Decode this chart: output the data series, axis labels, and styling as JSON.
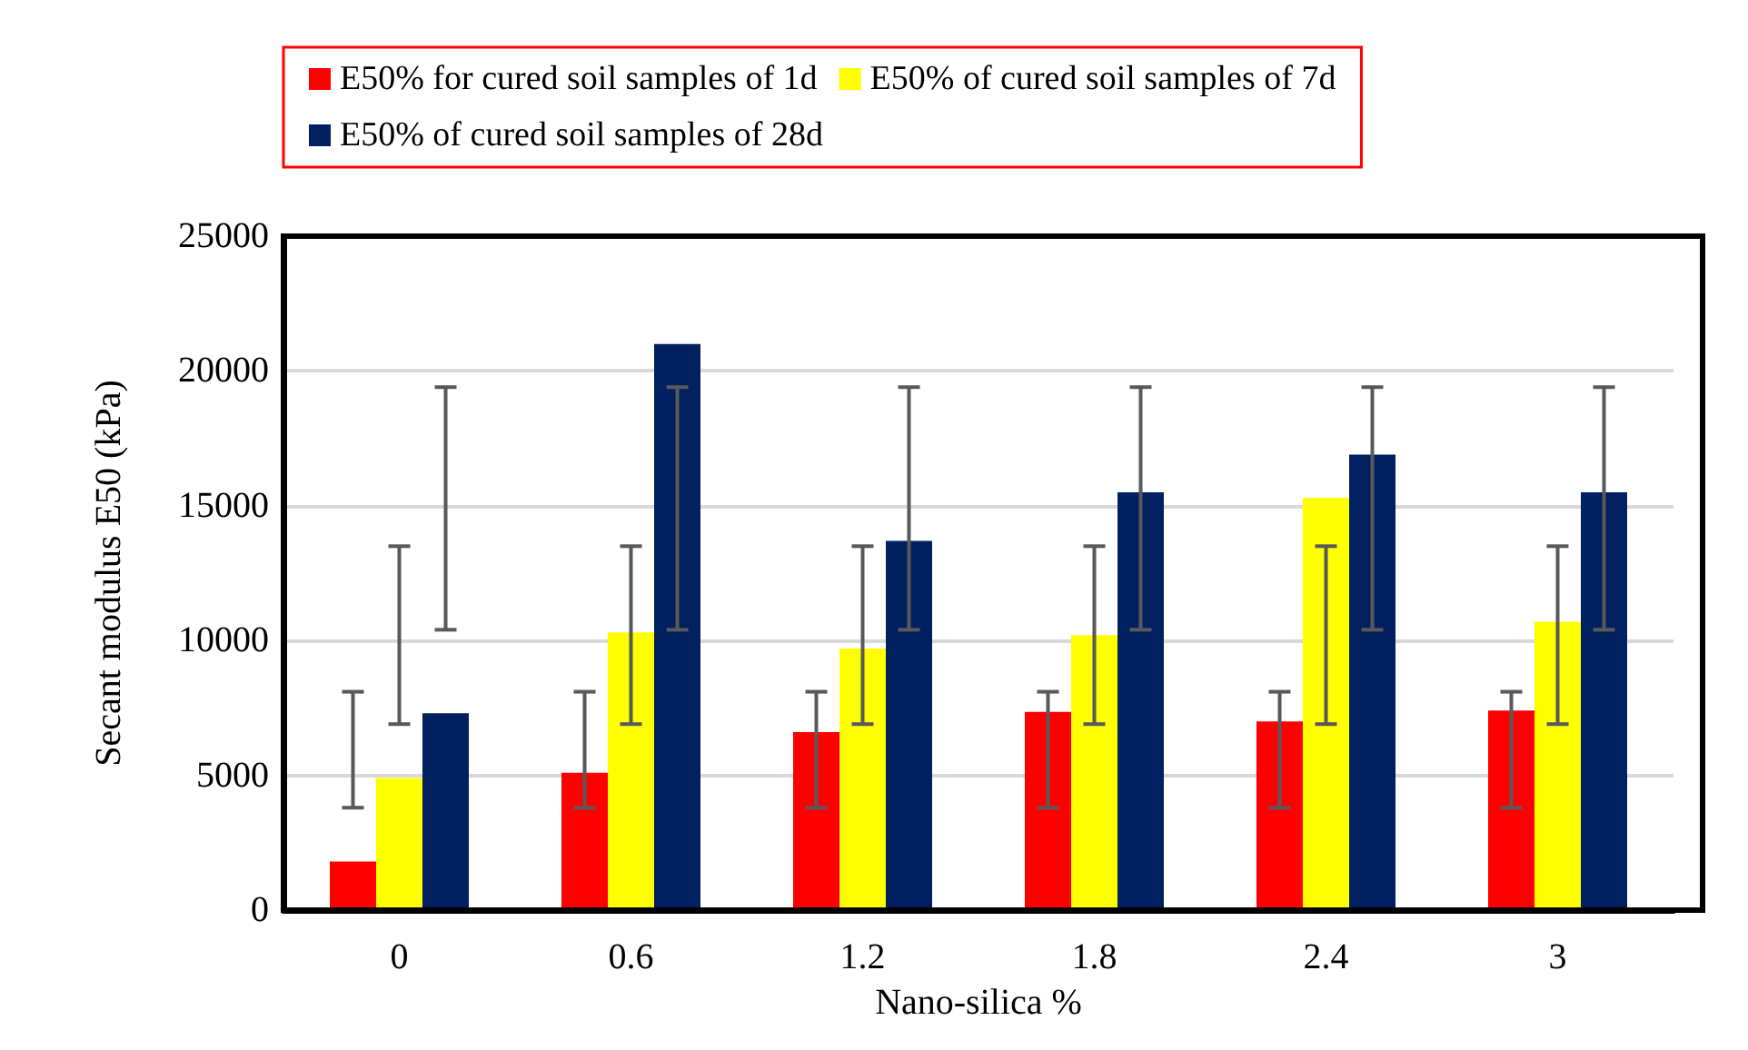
{
  "chart_data": {
    "type": "bar",
    "xlabel": "Nano-silica %",
    "ylabel": "Secant modulus E50 (kPa)",
    "categories": [
      "0",
      "0.6",
      "1.2",
      "1.8",
      "2.4",
      "3"
    ],
    "series": [
      {
        "name": "E50% for cured soil samples of 1d",
        "color": "#ff0000",
        "values": [
          1800,
          5100,
          6600,
          7350,
          7000,
          7400
        ],
        "errors": [
          [
            3800,
            8100
          ],
          [
            3800,
            8100
          ],
          [
            3800,
            8100
          ],
          [
            3800,
            8100
          ],
          [
            3800,
            8100
          ],
          [
            3800,
            8100
          ]
        ]
      },
      {
        "name": "E50% of cured soil samples of 7d",
        "color": "#ffff00",
        "values": [
          4900,
          10300,
          9700,
          10200,
          15300,
          10700
        ],
        "errors": [
          [
            6900,
            13500
          ],
          [
            6900,
            13500
          ],
          [
            6900,
            13500
          ],
          [
            6900,
            13500
          ],
          [
            6900,
            13500
          ],
          [
            6900,
            13500
          ]
        ]
      },
      {
        "name": "E50% of cured soil samples of 28d",
        "color": "#002060",
        "values": [
          7300,
          21000,
          13700,
          15500,
          16900,
          15500
        ],
        "errors": [
          [
            10400,
            19400
          ],
          [
            10400,
            19400
          ],
          [
            10400,
            19400
          ],
          [
            10400,
            19400
          ],
          [
            10400,
            19400
          ],
          [
            10400,
            19400
          ]
        ]
      }
    ],
    "ylim": [
      0,
      25000
    ],
    "yticks": [
      0,
      5000,
      10000,
      15000,
      20000,
      25000
    ],
    "grid": "y",
    "legend": "top"
  }
}
